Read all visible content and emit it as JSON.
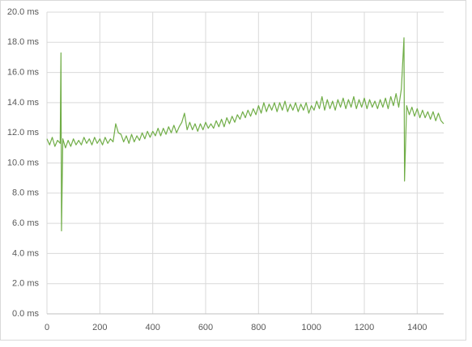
{
  "chart_data": {
    "type": "line",
    "x": [
      0,
      10,
      20,
      30,
      40,
      50,
      53,
      55,
      60,
      70,
      80,
      90,
      100,
      110,
      120,
      130,
      140,
      150,
      160,
      170,
      180,
      190,
      200,
      210,
      220,
      230,
      240,
      250,
      260,
      270,
      280,
      290,
      300,
      310,
      320,
      330,
      340,
      350,
      360,
      370,
      380,
      390,
      400,
      410,
      420,
      430,
      440,
      450,
      460,
      470,
      480,
      490,
      500,
      510,
      520,
      530,
      540,
      550,
      560,
      570,
      580,
      590,
      600,
      610,
      620,
      630,
      640,
      650,
      660,
      670,
      680,
      690,
      700,
      710,
      720,
      730,
      740,
      750,
      760,
      770,
      780,
      790,
      800,
      810,
      820,
      830,
      840,
      850,
      860,
      870,
      880,
      890,
      900,
      910,
      920,
      930,
      940,
      950,
      960,
      970,
      980,
      990,
      1000,
      1010,
      1020,
      1030,
      1040,
      1050,
      1060,
      1070,
      1080,
      1090,
      1100,
      1110,
      1120,
      1130,
      1140,
      1150,
      1160,
      1170,
      1180,
      1190,
      1200,
      1210,
      1220,
      1230,
      1240,
      1250,
      1260,
      1270,
      1280,
      1290,
      1300,
      1310,
      1320,
      1330,
      1340,
      1350,
      1352,
      1360,
      1370,
      1380,
      1390,
      1400,
      1410,
      1420,
      1430,
      1440,
      1450,
      1460,
      1470,
      1480,
      1490,
      1500
    ],
    "series": [
      {
        "color": "#70ad47",
        "values": [
          11.6,
          11.2,
          11.7,
          11.1,
          11.5,
          11.3,
          17.3,
          5.5,
          11.6,
          11.0,
          11.5,
          11.1,
          11.6,
          11.2,
          11.5,
          11.2,
          11.7,
          11.3,
          11.6,
          11.2,
          11.7,
          11.3,
          11.6,
          11.2,
          11.7,
          11.3,
          11.6,
          11.4,
          12.6,
          12.0,
          11.9,
          11.4,
          11.8,
          11.3,
          11.9,
          11.4,
          11.8,
          11.5,
          12.0,
          11.6,
          12.1,
          11.7,
          12.1,
          11.8,
          12.3,
          11.8,
          12.3,
          11.9,
          12.4,
          12.0,
          12.5,
          12.0,
          12.4,
          12.7,
          13.3,
          12.2,
          12.7,
          12.2,
          12.6,
          12.1,
          12.6,
          12.2,
          12.7,
          12.3,
          12.6,
          12.3,
          12.8,
          12.4,
          12.9,
          12.4,
          13.0,
          12.6,
          13.1,
          12.7,
          13.2,
          12.9,
          13.4,
          13.0,
          13.5,
          13.1,
          13.6,
          13.2,
          13.8,
          13.3,
          14.0,
          13.4,
          13.9,
          13.5,
          14.0,
          13.4,
          14.0,
          13.5,
          14.1,
          13.4,
          13.9,
          13.5,
          14.0,
          13.4,
          13.9,
          13.5,
          14.0,
          13.3,
          13.8,
          13.5,
          14.1,
          13.6,
          14.4,
          13.5,
          14.2,
          13.6,
          14.1,
          13.5,
          14.2,
          13.7,
          14.3,
          13.6,
          14.2,
          13.7,
          14.4,
          13.6,
          14.2,
          13.7,
          14.3,
          13.6,
          14.2,
          13.7,
          14.1,
          13.6,
          14.2,
          13.7,
          14.3,
          13.6,
          14.4,
          13.8,
          14.6,
          13.7,
          14.9,
          18.3,
          8.8,
          13.8,
          13.2,
          13.7,
          13.1,
          13.6,
          13.0,
          13.5,
          13.0,
          13.4,
          12.9,
          13.4,
          12.8,
          13.3,
          12.8,
          12.6
        ]
      }
    ],
    "xlim": [
      0,
      1500
    ],
    "xticks": [
      0,
      200,
      400,
      600,
      800,
      1000,
      1200,
      1400
    ],
    "ylim": [
      0,
      20
    ],
    "yticks": [
      {
        "value": 0,
        "label": "0.0 ms"
      },
      {
        "value": 2,
        "label": "2.0 ms"
      },
      {
        "value": 4,
        "label": "4.0 ms"
      },
      {
        "value": 6,
        "label": "6.0 ms"
      },
      {
        "value": 8,
        "label": "8.0 ms"
      },
      {
        "value": 10,
        "label": "10.0 ms"
      },
      {
        "value": 12,
        "label": "12.0 ms"
      },
      {
        "value": 14,
        "label": "14.0 ms"
      },
      {
        "value": 16,
        "label": "16.0 ms"
      },
      {
        "value": 18,
        "label": "18.0 ms"
      },
      {
        "value": 20,
        "label": "20.0 ms"
      }
    ],
    "grid": true
  }
}
